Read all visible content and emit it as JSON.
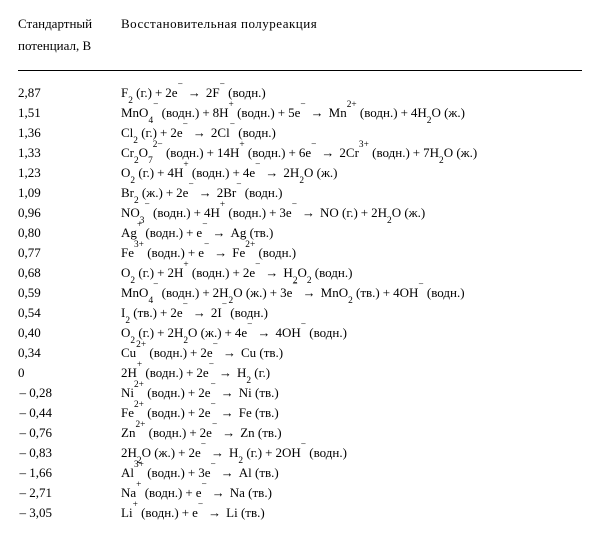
{
  "header": {
    "col1_line1": "Стандартный",
    "col1_line2": "потенциал,  В",
    "col2": "Восстановительная  полуреакция"
  },
  "rows": [
    {
      "potential": "2,87",
      "neg": false,
      "rxn": "F<sub>2</sub> (г.)<span class='op'>+</span>2e<sup>−</sup><span class='arrow'>→</span>2F<sup>−</sup> (водн.)"
    },
    {
      "potential": "1,51",
      "neg": false,
      "rxn": "MnO<sub>4</sub><sup>−</sup> (водн.)<span class='op'>+</span>8H<sup>+</sup> (водн.)<span class='op'>+</span>5e<sup>−</sup><span class='arrow'>→</span>Mn<sup>2+</sup> (водн.)<span class='op'>+</span>4H<sub>2</sub>O (ж.)"
    },
    {
      "potential": "1,36",
      "neg": false,
      "rxn": "Cl<sub>2</sub> (г.)<span class='op'>+</span>2e<sup>−</sup><span class='arrow'>→</span>2Cl<sup>−</sup> (водн.)"
    },
    {
      "potential": "1,33",
      "neg": false,
      "rxn": "Cr<sub>2</sub>O<sub>7</sub><sup>2−</sup> (водн.)<span class='op'>+</span>14H<sup>+</sup> (водн.)<span class='op'>+</span>6e<sup>−</sup><span class='arrow'>→</span>2Cr<sup>3+</sup> (водн.)<span class='op'>+</span>7H<sub>2</sub>O (ж.)"
    },
    {
      "potential": "1,23",
      "neg": false,
      "rxn": "O<sub>2</sub> (г.)<span class='op'>+</span>4H<sup>+</sup> (водн.)<span class='op'>+</span>4e<sup>−</sup><span class='arrow'>→</span>2H<sub>2</sub>O (ж.)"
    },
    {
      "potential": "1,09",
      "neg": false,
      "rxn": "Br<sub>2</sub> (ж.)<span class='op'>+</span>2e<sup>−</sup><span class='arrow'>→</span>2Br<sup>−</sup> (водн.)"
    },
    {
      "potential": "0,96",
      "neg": false,
      "rxn": "NO<sub>3</sub><sup>−</sup> (водн.)<span class='op'>+</span>4H<sup>+</sup> (водн.)<span class='op'>+</span>3e<sup>−</sup><span class='arrow'>→</span>NO (г.)<span class='op'>+</span>2H<sub>2</sub>O (ж.)"
    },
    {
      "potential": "0,80",
      "neg": false,
      "rxn": "Ag<sup>+</sup> (водн.)<span class='op'>+</span>e<sup>−</sup><span class='arrow'>→</span>Ag (тв.)"
    },
    {
      "potential": "0,77",
      "neg": false,
      "rxn": "Fe<sup>3+</sup> (водн.)<span class='op'>+</span>e<sup>−</sup><span class='arrow'>→</span>Fe<sup>2+</sup> (водн.)"
    },
    {
      "potential": "0,68",
      "neg": false,
      "rxn": "O<sub>2</sub> (г.)<span class='op'>+</span>2H<sup>+</sup> (водн.)<span class='op'>+</span>2e<sup>−</sup><span class='arrow'>→</span>H<sub>2</sub>O<sub>2</sub> (водн.)"
    },
    {
      "potential": "0,59",
      "neg": false,
      "rxn": "MnO<sub>4</sub><sup>−</sup> (водн.)<span class='op'>+</span>2H<sub>2</sub>O (ж.)<span class='op'>+</span>3e<sup>−</sup><span class='arrow'>→</span>MnO<sub>2</sub> (тв.)<span class='op'>+</span>4OH<sup>−</sup> (водн.)"
    },
    {
      "potential": "0,54",
      "neg": false,
      "rxn": "I<sub>2</sub> (тв.)<span class='op'>+</span>2e<sup>−</sup><span class='arrow'>→</span>2I<sup>−</sup> (водн.)"
    },
    {
      "potential": "0,40",
      "neg": false,
      "rxn": "O<sub>2</sub> (г.)<span class='op'>+</span>2H<sub>2</sub>O (ж.)<span class='op'>+</span>4e<sup>−</sup><span class='arrow'>→</span>4OH<sup>−</sup> (водн.)"
    },
    {
      "potential": "0,34",
      "neg": false,
      "rxn": "Cu<sup>2+</sup> (водн.)<span class='op'>+</span>2e<sup>−</sup><span class='arrow'>→</span>Cu (тв.)"
    },
    {
      "potential": "0",
      "neg": false,
      "rxn": "2H<sup>+</sup> (водн.)<span class='op'>+</span>2e<sup>−</sup><span class='arrow'>→</span>H<sub>2</sub> (г.)"
    },
    {
      "potential": "0,28",
      "neg": true,
      "rxn": "Ni<sup>2+</sup> (водн.)<span class='op'>+</span>2e<sup>−</sup><span class='arrow'>→</span>Ni (тв.)"
    },
    {
      "potential": "0,44",
      "neg": true,
      "rxn": "Fe<sup>2+</sup> (водн.)<span class='op'>+</span>2e<sup>−</sup><span class='arrow'>→</span>Fe (тв.)"
    },
    {
      "potential": "0,76",
      "neg": true,
      "rxn": "Zn<sup>2+</sup> (водн.)<span class='op'>+</span>2e<sup>−</sup><span class='arrow'>→</span>Zn (тв.)"
    },
    {
      "potential": "0,83",
      "neg": true,
      "rxn": "2H<sub>2</sub>O (ж.)<span class='op'>+</span>2e<sup>−</sup><span class='arrow'>→</span>H<sub>2</sub> (г.)<span class='op'>+</span>2OH<sup>−</sup> (водн.)"
    },
    {
      "potential": "1,66",
      "neg": true,
      "rxn": "Al<sup>3+</sup> (водн.)<span class='op'>+</span>3e<sup>−</sup><span class='arrow'>→</span>Al (тв.)"
    },
    {
      "potential": "2,71",
      "neg": true,
      "rxn": "Na<sup>+</sup> (водн.)<span class='op'>+</span>e<sup>−</sup><span class='arrow'>→</span>Na (тв.)"
    },
    {
      "potential": "3,05",
      "neg": true,
      "rxn": "Li<sup>+</sup> (водн.)<span class='op'>+</span>e<sup>−</sup><span class='arrow'>→</span>Li (тв.)"
    }
  ]
}
